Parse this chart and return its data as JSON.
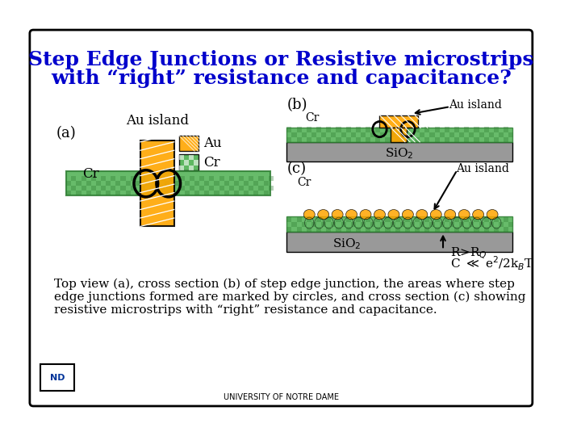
{
  "title_line1": "Step Edge Junctions or Resistive microstrips",
  "title_line2": "with “right” resistance and capacitance?",
  "title_color": "#0000CC",
  "title_fontsize": 18,
  "bg_color": "#FFFFFF",
  "border_color": "#000000",
  "au_color": "#FFA500",
  "cr_color": "#4CAF50",
  "sio2_color": "#999999",
  "cr_dark_color": "#2E7D32",
  "caption": "Top view (a), cross section (b) of step edge junction, the areas where step\nedge junctions formed are marked by circles, and cross section (c) showing\nresistive microstrips with “right” resistance and capacitance.",
  "caption_fontsize": 11,
  "university_text": "UNIVERSITY OF NOTRE DAME",
  "university_fontsize": 7
}
